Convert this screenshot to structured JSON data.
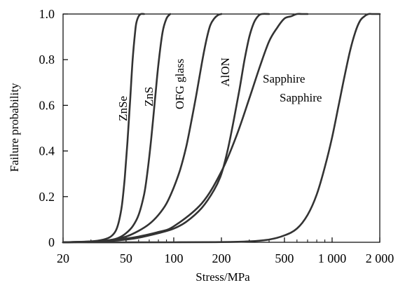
{
  "chart_data": {
    "type": "line",
    "title": "",
    "xlabel": "Stress/MPa",
    "ylabel": "Failure probability",
    "x_scale": "log",
    "xlim": [
      20,
      2000
    ],
    "ylim": [
      0,
      1.0
    ],
    "x_ticks": [
      20,
      50,
      100,
      200,
      500,
      1000,
      2000
    ],
    "x_tick_labels": [
      "20",
      "50",
      "100",
      "200",
      "500",
      "1 000",
      "2 000"
    ],
    "y_ticks": [
      0,
      0.2,
      0.4,
      0.6,
      0.8,
      1.0
    ],
    "y_tick_labels": [
      "0",
      "0.2",
      "0.4",
      "0.6",
      "0.8",
      "1.0"
    ],
    "grid": false,
    "legend": "none (curves labeled directly)",
    "line_color": "#333333",
    "series": [
      {
        "name": "ZnSe",
        "x": [
          20,
          30,
          36,
          40,
          43,
          45,
          47,
          49,
          51,
          53,
          55,
          57,
          58,
          60,
          62,
          65
        ],
        "y": [
          0.0,
          0.004,
          0.012,
          0.025,
          0.05,
          0.09,
          0.16,
          0.28,
          0.44,
          0.62,
          0.8,
          0.92,
          0.96,
          0.99,
          1.0,
          1.0
        ]
      },
      {
        "name": "ZnS",
        "x": [
          20,
          30,
          40,
          45,
          50,
          55,
          60,
          65,
          68,
          72,
          76,
          80,
          85,
          90,
          95
        ],
        "y": [
          0.0,
          0.002,
          0.01,
          0.02,
          0.04,
          0.07,
          0.12,
          0.21,
          0.3,
          0.45,
          0.62,
          0.78,
          0.92,
          0.98,
          1.0
        ]
      },
      {
        "name": "OFG glass",
        "x": [
          20,
          30,
          40,
          50,
          60,
          70,
          80,
          90,
          100,
          110,
          120,
          130,
          140,
          150,
          160,
          170,
          180,
          190,
          200
        ],
        "y": [
          0.0,
          0.003,
          0.01,
          0.025,
          0.05,
          0.08,
          0.12,
          0.17,
          0.24,
          0.32,
          0.42,
          0.54,
          0.66,
          0.78,
          0.88,
          0.95,
          0.98,
          0.995,
          1.0
        ]
      },
      {
        "name": "AlON",
        "x": [
          20,
          30,
          40,
          50,
          60,
          80,
          100,
          120,
          150,
          180,
          200,
          220,
          240,
          260,
          280,
          300,
          320,
          340,
          360,
          400
        ],
        "y": [
          0.0,
          0.002,
          0.006,
          0.012,
          0.02,
          0.04,
          0.06,
          0.09,
          0.15,
          0.23,
          0.3,
          0.41,
          0.54,
          0.67,
          0.8,
          0.9,
          0.96,
          0.99,
          1.0,
          1.0
        ]
      },
      {
        "name": "Sapphire",
        "x": [
          20,
          30,
          40,
          50,
          60,
          80,
          100,
          150,
          200,
          250,
          300,
          350,
          400,
          450,
          500,
          550,
          600,
          650,
          700
        ],
        "y": [
          0.0,
          0.003,
          0.008,
          0.016,
          0.025,
          0.045,
          0.07,
          0.17,
          0.31,
          0.47,
          0.63,
          0.77,
          0.88,
          0.94,
          0.98,
          0.99,
          1.0,
          1.0,
          1.0
        ]
      },
      {
        "name": "Sapphire",
        "x": [
          20,
          100,
          200,
          300,
          400,
          500,
          600,
          700,
          800,
          900,
          1000,
          1100,
          1200,
          1300,
          1400,
          1500,
          1600,
          1700,
          1800,
          2000
        ],
        "y": [
          0.0,
          0.0,
          0.001,
          0.004,
          0.012,
          0.03,
          0.06,
          0.12,
          0.21,
          0.33,
          0.46,
          0.6,
          0.73,
          0.84,
          0.92,
          0.97,
          0.99,
          1.0,
          1.0,
          1.0
        ]
      }
    ]
  }
}
